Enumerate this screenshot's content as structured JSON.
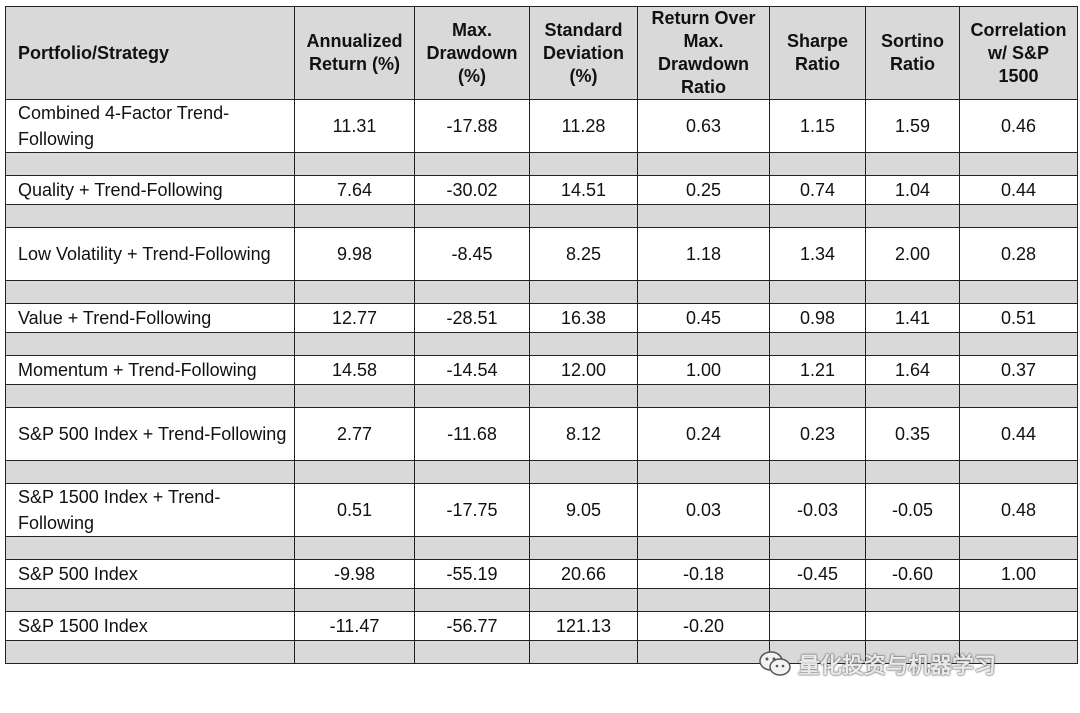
{
  "headers": [
    "Portfolio/Strategy",
    "Annualized Return (%)",
    "Max. Drawdown (%)",
    "Standard Deviation (%)",
    "Return Over Max. Drawdown Ratio",
    "Sharpe Ratio",
    "Sortino Ratio",
    "Correlation w/ S&P 1500"
  ],
  "rows": [
    {
      "name": "Combined 4-Factor Trend-Following",
      "ret": "11.31",
      "dd": "-17.88",
      "sd": "11.28",
      "romad": "0.63",
      "sharpe": "1.15",
      "sortino": "1.59",
      "corr": "0.46"
    },
    {
      "name": "Quality + Trend-Following",
      "ret": "7.64",
      "dd": "-30.02",
      "sd": "14.51",
      "romad": "0.25",
      "sharpe": "0.74",
      "sortino": "1.04",
      "corr": "0.44"
    },
    {
      "name": "Low Volatility + Trend-Following",
      "ret": "9.98",
      "dd": "-8.45",
      "sd": "8.25",
      "romad": "1.18",
      "sharpe": "1.34",
      "sortino": "2.00",
      "corr": "0.28"
    },
    {
      "name": "Value + Trend-Following",
      "ret": "12.77",
      "dd": "-28.51",
      "sd": "16.38",
      "romad": "0.45",
      "sharpe": "0.98",
      "sortino": "1.41",
      "corr": "0.51"
    },
    {
      "name": "Momentum + Trend-Following",
      "ret": "14.58",
      "dd": "-14.54",
      "sd": "12.00",
      "romad": "1.00",
      "sharpe": "1.21",
      "sortino": "1.64",
      "corr": "0.37"
    },
    {
      "name": "S&P 500 Index + Trend-Following",
      "ret": "2.77",
      "dd": "-11.68",
      "sd": "8.12",
      "romad": "0.24",
      "sharpe": "0.23",
      "sortino": "0.35",
      "corr": "0.44"
    },
    {
      "name": "S&P 1500 Index + Trend-Following",
      "ret": "0.51",
      "dd": "-17.75",
      "sd": "9.05",
      "romad": "0.03",
      "sharpe": "-0.03",
      "sortino": "-0.05",
      "corr": "0.48"
    },
    {
      "name": "S&P 500 Index",
      "ret": "-9.98",
      "dd": "-55.19",
      "sd": "20.66",
      "romad": "-0.18",
      "sharpe": "-0.45",
      "sortino": "-0.60",
      "corr": "1.00"
    },
    {
      "name": "S&P 1500 Index",
      "ret": "-11.47",
      "dd": "-56.77",
      "sd": "121.13",
      "romad": "-0.20",
      "sharpe": "",
      "sortino": "",
      "corr": ""
    }
  ],
  "colors": {
    "negative": "#e33a2f",
    "header_bg": "#d9d9d9",
    "spacer_bg": "#d9d9d9"
  },
  "watermark": {
    "text": "量化投资与机器学习",
    "icon": "wechat-icon"
  }
}
